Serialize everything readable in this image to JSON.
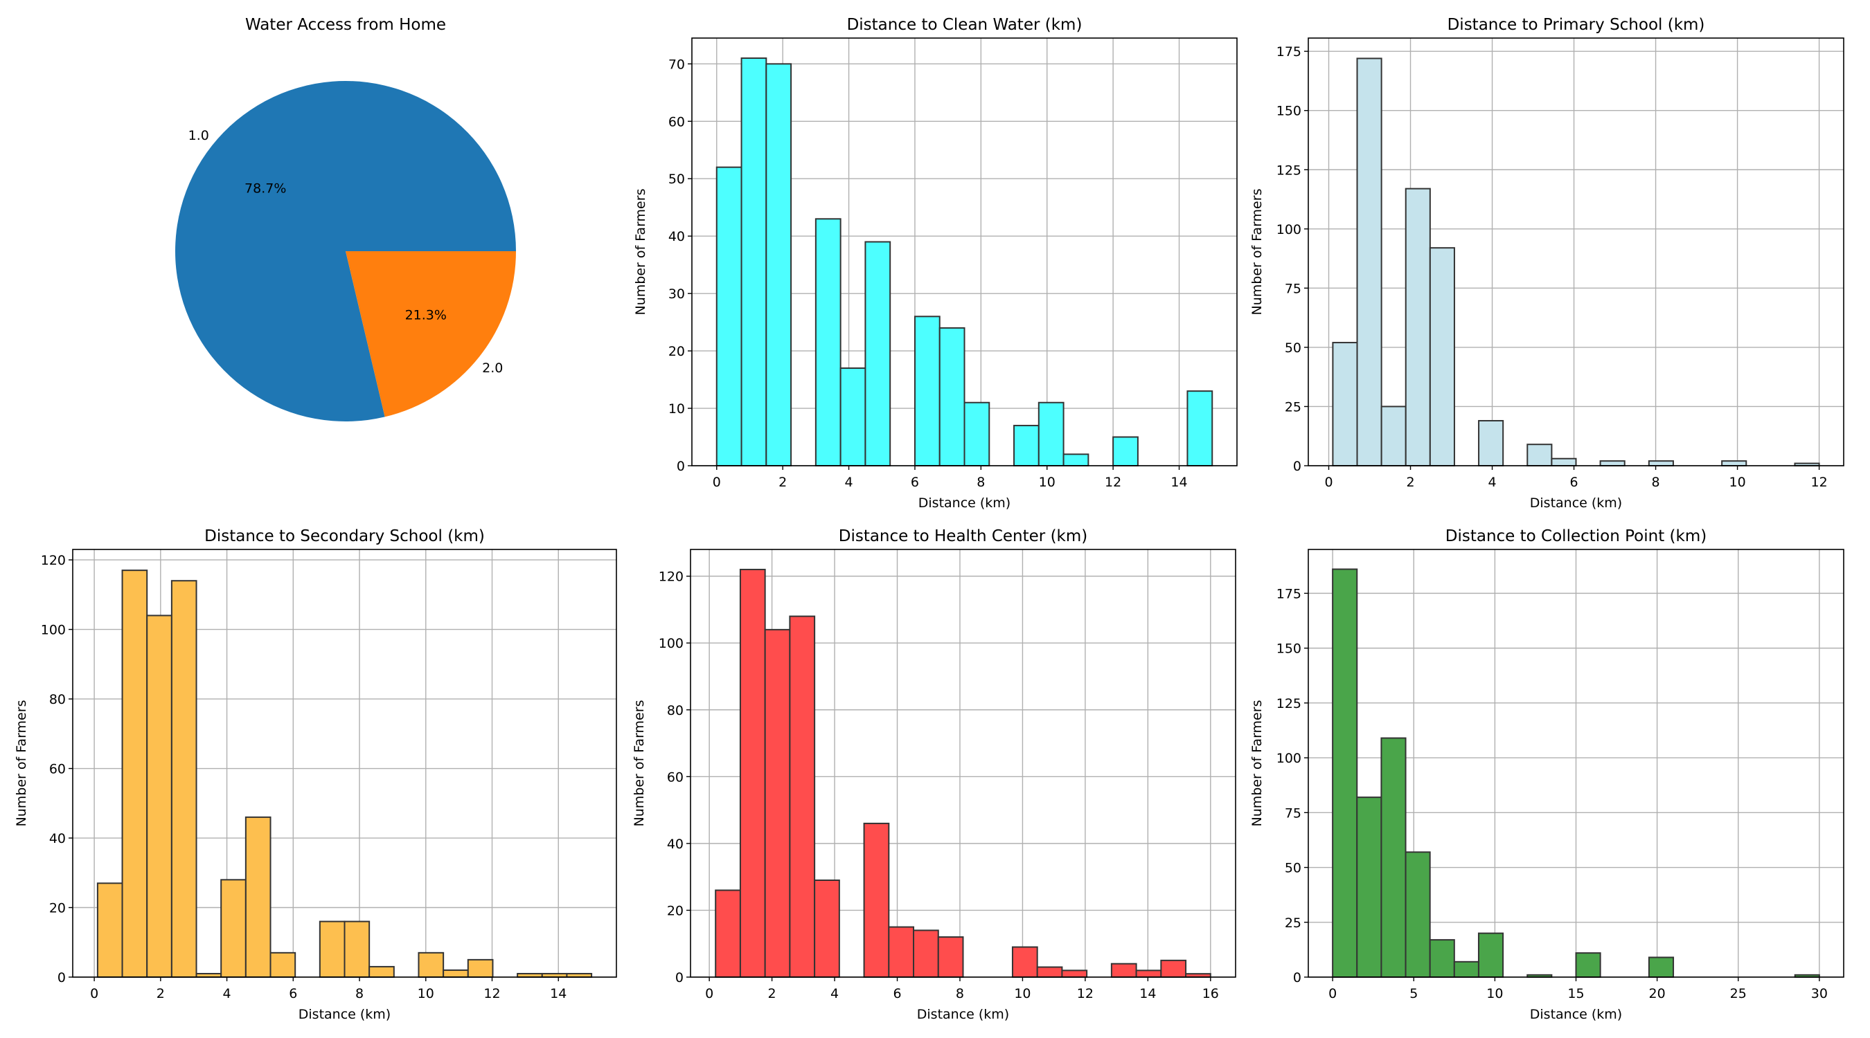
{
  "chart_data": [
    {
      "type": "pie",
      "title": "Water Access from Home",
      "labels": [
        "1.0",
        "2.0"
      ],
      "values": [
        78.7,
        21.3
      ],
      "pct_labels": [
        "78.7%",
        "21.3%"
      ],
      "colors": [
        "#1f77b4",
        "#ff7f0e"
      ]
    },
    {
      "type": "bar",
      "title": "Distance to Clean Water (km)",
      "xlabel": "Distance (km)",
      "ylabel": "Number of Farmers",
      "range": [
        0,
        15
      ],
      "bins": 20,
      "values": [
        52,
        71,
        70,
        0,
        43,
        17,
        39,
        0,
        26,
        24,
        11,
        0,
        7,
        11,
        2,
        0,
        5,
        0,
        0,
        13
      ],
      "xlim": [
        -0.75,
        15.75
      ],
      "ylim": [
        0,
        74.5
      ],
      "xticks": [
        0,
        2,
        4,
        6,
        8,
        10,
        12,
        14
      ],
      "yticks": [
        0,
        10,
        20,
        30,
        40,
        50,
        60,
        70
      ],
      "color": "#4dffff",
      "grid": true
    },
    {
      "type": "bar",
      "title": "Distance to Primary School (km)",
      "xlabel": "Distance (km)",
      "ylabel": "Number of Farmers",
      "range": [
        0.1,
        12
      ],
      "bins": 20,
      "values": [
        52,
        172,
        25,
        117,
        92,
        0,
        19,
        0,
        9,
        3,
        0,
        2,
        0,
        2,
        0,
        0,
        2,
        0,
        0,
        1
      ],
      "xlim": [
        -0.5,
        12.6
      ],
      "ylim": [
        0,
        180.6
      ],
      "xticks": [
        0,
        2,
        4,
        6,
        8,
        10,
        12
      ],
      "yticks": [
        0,
        25,
        50,
        75,
        100,
        125,
        150,
        175
      ],
      "color": "#c5e3ec",
      "grid": true
    },
    {
      "type": "bar",
      "title": "Distance to Secondary School (km)",
      "xlabel": "Distance (km)",
      "ylabel": "Number of Farmers",
      "range": [
        0.1,
        15
      ],
      "bins": 20,
      "values": [
        27,
        117,
        104,
        114,
        1,
        28,
        46,
        7,
        0,
        16,
        16,
        3,
        0,
        7,
        2,
        5,
        0,
        1,
        1,
        1
      ],
      "xlim": [
        -0.65,
        15.75
      ],
      "ylim": [
        0,
        123
      ],
      "xticks": [
        0,
        2,
        4,
        6,
        8,
        10,
        12,
        14
      ],
      "yticks": [
        0,
        20,
        40,
        60,
        80,
        100,
        120
      ],
      "color": "#fdbf4f",
      "grid": true
    },
    {
      "type": "bar",
      "title": "Distance to Health Center (km)",
      "xlabel": "Distance (km)",
      "ylabel": "Number of Farmers",
      "range": [
        0.2,
        16
      ],
      "bins": 20,
      "values": [
        26,
        122,
        104,
        108,
        29,
        0,
        46,
        15,
        14,
        12,
        0,
        0,
        9,
        3,
        2,
        0,
        4,
        2,
        5,
        1
      ],
      "xlim": [
        -0.6,
        16.8
      ],
      "ylim": [
        0,
        128
      ],
      "xticks": [
        0,
        2,
        4,
        6,
        8,
        10,
        12,
        14,
        16
      ],
      "yticks": [
        0,
        20,
        40,
        60,
        80,
        100,
        120
      ],
      "color": "#ff4d4d",
      "grid": true
    },
    {
      "type": "bar",
      "title": "Distance to Collection Point (km)",
      "xlabel": "Distance (km)",
      "ylabel": "Number of Farmers",
      "range": [
        0,
        30
      ],
      "bins": 20,
      "values": [
        186,
        82,
        109,
        57,
        17,
        7,
        20,
        0,
        1,
        0,
        11,
        0,
        0,
        9,
        0,
        0,
        0,
        0,
        0,
        1
      ],
      "xlim": [
        -1.5,
        31.5
      ],
      "ylim": [
        0,
        195
      ],
      "xticks": [
        0,
        5,
        10,
        15,
        20,
        25,
        30
      ],
      "yticks": [
        0,
        25,
        50,
        75,
        100,
        125,
        150,
        175
      ],
      "color": "#4aa54a",
      "grid": true
    }
  ]
}
